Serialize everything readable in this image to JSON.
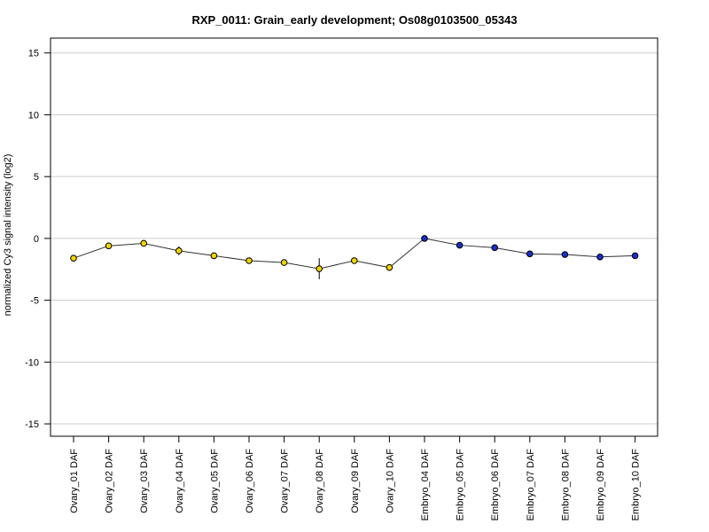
{
  "chart_data": {
    "type": "line",
    "title": "RXP_0011: Grain_early development; Os08g0103500_05343",
    "xlabel": "",
    "ylabel": "normalized Cy3 signal intensity (log2)",
    "ylim": [
      -16,
      16.2
    ],
    "yticks": [
      15,
      10,
      5,
      0,
      -5,
      -10,
      -15
    ],
    "grid": true,
    "categories": [
      "Ovary_01 DAF",
      "Ovary_02 DAF",
      "Ovary_03 DAF",
      "Ovary_04 DAF",
      "Ovary_05 DAF",
      "Ovary_06 DAF",
      "Ovary_07 DAF",
      "Ovary_08 DAF",
      "Ovary_09 DAF",
      "Ovary_10 DAF",
      "Embryo_04 DAF",
      "Embryo_05 DAF",
      "Embryo_06 DAF",
      "Embryo_07 DAF",
      "Embryo_08 DAF",
      "Embryo_09 DAF",
      "Embryo_10 DAF"
    ],
    "values": [
      -1.6,
      -0.6,
      -0.4,
      -1.0,
      -1.4,
      -1.8,
      -1.95,
      -2.45,
      -1.8,
      -2.35,
      0.0,
      -0.55,
      -0.75,
      -1.25,
      -1.3,
      -1.5,
      -1.4
    ],
    "errors": [
      0.1,
      0.15,
      0.1,
      0.35,
      0.1,
      0.1,
      0.1,
      0.85,
      0.15,
      0.1,
      0.1,
      0.1,
      0.1,
      0.1,
      0.1,
      0.1,
      0.1
    ],
    "point_colors": [
      "#f0d400",
      "#f0d400",
      "#f0d400",
      "#f0d400",
      "#f0d400",
      "#f0d400",
      "#f0d400",
      "#f0d400",
      "#f0d400",
      "#f0d400",
      "#1a2fc8",
      "#1a2fc8",
      "#1a2fc8",
      "#1a2fc8",
      "#1a2fc8",
      "#1a2fc8",
      "#1a2fc8"
    ]
  }
}
